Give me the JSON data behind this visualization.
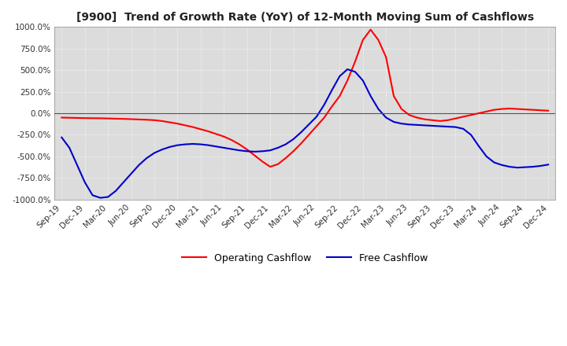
{
  "title": "[9900]  Trend of Growth Rate (YoY) of 12-Month Moving Sum of Cashflows",
  "ylim": [
    -1000,
    1000
  ],
  "yticks": [
    -1000,
    -750,
    -500,
    -250,
    0,
    250,
    500,
    750,
    1000
  ],
  "background_color": "#ffffff",
  "plot_bg_color": "#dcdcdc",
  "grid_color": "#ffffff",
  "operating_color": "#ff0000",
  "free_color": "#0000cc",
  "legend_labels": [
    "Operating Cashflow",
    "Free Cashflow"
  ],
  "x_labels": [
    "Sep-19",
    "Dec-19",
    "Mar-20",
    "Jun-20",
    "Sep-20",
    "Dec-20",
    "Mar-21",
    "Jun-21",
    "Sep-21",
    "Dec-21",
    "Mar-22",
    "Jun-22",
    "Sep-22",
    "Dec-22",
    "Mar-23",
    "Jun-23",
    "Sep-23",
    "Dec-23",
    "Mar-24",
    "Jun-24",
    "Sep-24",
    "Dec-24"
  ],
  "n_months": 64,
  "operating_cashflow": [
    -50,
    -52,
    -54,
    -56,
    -57,
    -58,
    -60,
    -63,
    -65,
    -68,
    -72,
    -75,
    -80,
    -90,
    -105,
    -120,
    -140,
    -160,
    -185,
    -210,
    -240,
    -270,
    -310,
    -360,
    -420,
    -490,
    -560,
    -620,
    -590,
    -520,
    -440,
    -350,
    -250,
    -150,
    -50,
    80,
    200,
    380,
    600,
    850,
    970,
    850,
    650,
    200,
    50,
    -20,
    -50,
    -70,
    -80,
    -90,
    -80,
    -60,
    -40,
    -20,
    0,
    20,
    40,
    50,
    55,
    50,
    45,
    40,
    35,
    30
  ],
  "free_cashflow": [
    -280,
    -400,
    -600,
    -800,
    -950,
    -980,
    -970,
    -900,
    -800,
    -700,
    -600,
    -520,
    -460,
    -420,
    -390,
    -370,
    -360,
    -355,
    -360,
    -370,
    -385,
    -400,
    -415,
    -430,
    -440,
    -445,
    -440,
    -430,
    -400,
    -360,
    -300,
    -220,
    -130,
    -40,
    100,
    270,
    430,
    510,
    480,
    380,
    200,
    50,
    -50,
    -100,
    -120,
    -130,
    -135,
    -140,
    -145,
    -150,
    -155,
    -160,
    -180,
    -250,
    -380,
    -500,
    -570,
    -600,
    -620,
    -630,
    -625,
    -620,
    -610,
    -595
  ]
}
